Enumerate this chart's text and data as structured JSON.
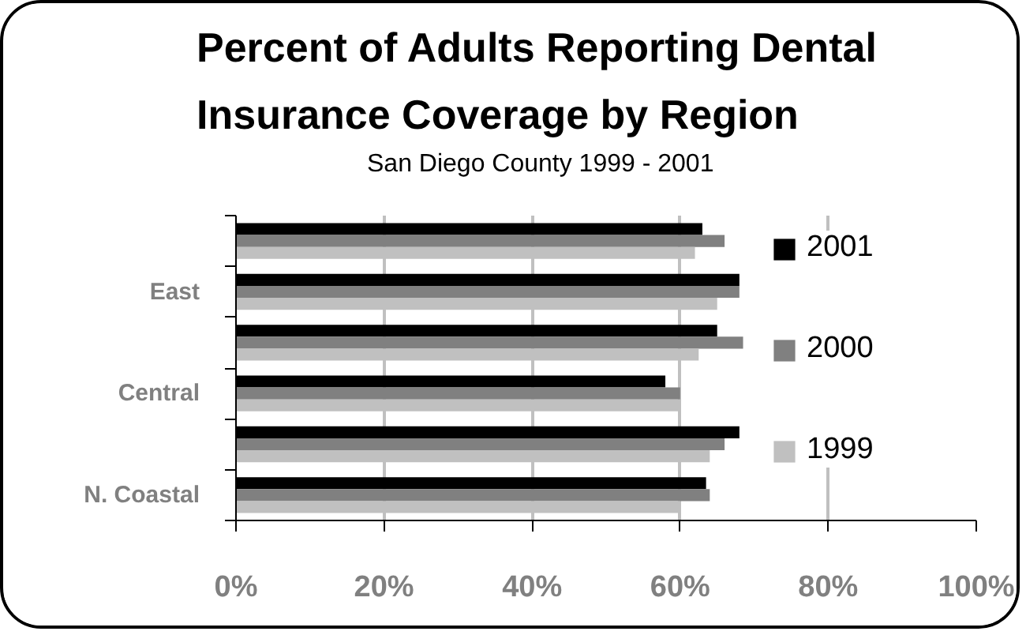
{
  "chart_data": {
    "type": "bar",
    "orientation": "horizontal",
    "title": "Percent of Adults Reporting Dental Insurance Coverage by Region",
    "subtitle": "San Diego County 1999 - 2001",
    "categories": [
      null,
      "East",
      null,
      "Central",
      null,
      "N. Coastal"
    ],
    "series": [
      {
        "name": "2001",
        "color": "#000000",
        "values": [
          63,
          68,
          65,
          58,
          68,
          63.5
        ]
      },
      {
        "name": "2000",
        "color": "#808080",
        "values": [
          66,
          68,
          68.5,
          60,
          66,
          64
        ]
      },
      {
        "name": "1999",
        "color": "#c0c0c0",
        "values": [
          62,
          65,
          62.5,
          60,
          64,
          60
        ]
      }
    ],
    "xlim": [
      0,
      100
    ],
    "xticks": [
      {
        "value": 0,
        "label": "0%"
      },
      {
        "value": 20,
        "label": "20%"
      },
      {
        "value": 40,
        "label": "40%"
      },
      {
        "value": 60,
        "label": "60%"
      },
      {
        "value": 80,
        "label": "80%"
      },
      {
        "value": 100,
        "label": "100%"
      }
    ],
    "grid": "x",
    "legend": "right"
  }
}
